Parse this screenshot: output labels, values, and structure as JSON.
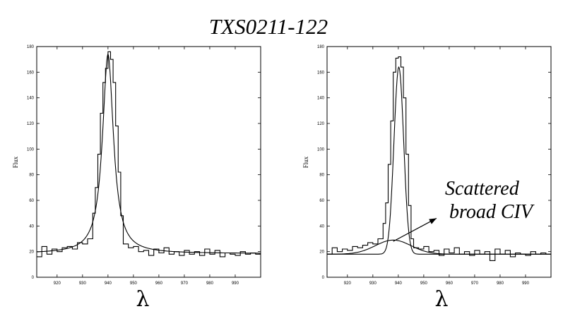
{
  "figure": {
    "title": "TXS0211-122"
  },
  "chart_data": [
    {
      "type": "line",
      "ylabel": "Flux",
      "xlabel": "λ",
      "xlim": [
        912,
        1000
      ],
      "ylim": [
        0,
        180
      ],
      "xticks": [
        920,
        930,
        940,
        950,
        960,
        970,
        980,
        990
      ],
      "yticks": [
        0,
        20,
        40,
        60,
        80,
        100,
        120,
        140,
        160,
        180
      ],
      "series": [
        {
          "style": "steps",
          "x": [
            912,
            914,
            916,
            918,
            920,
            922,
            924,
            926,
            928,
            930,
            932,
            934,
            935,
            936,
            937,
            938,
            939,
            940,
            941,
            942,
            943,
            944,
            945,
            946,
            948,
            950,
            952,
            954,
            956,
            958,
            960,
            962,
            964,
            966,
            968,
            970,
            972,
            974,
            976,
            978,
            980,
            982,
            984,
            986,
            988,
            990,
            992,
            994,
            996,
            998
          ],
          "y": [
            16,
            24,
            18,
            22,
            20,
            23,
            24,
            22,
            27,
            26,
            30,
            50,
            70,
            96,
            128,
            152,
            163,
            176,
            170,
            152,
            118,
            82,
            48,
            26,
            23,
            24,
            20,
            21,
            17,
            22,
            19,
            23,
            18,
            20,
            17,
            21,
            18,
            20,
            17,
            22,
            18,
            21,
            16,
            19,
            18,
            17,
            20,
            18,
            19,
            18
          ]
        },
        {
          "style": "smooth",
          "model": "lorentzian",
          "center": 940,
          "peak": 174,
          "hwhm": 2.6,
          "baseline": 18.5
        }
      ]
    },
    {
      "type": "line",
      "ylabel": "Flux",
      "xlabel": "λ",
      "xlim": [
        912,
        1000
      ],
      "ylim": [
        0,
        180
      ],
      "xticks": [
        920,
        930,
        940,
        950,
        960,
        970,
        980,
        990
      ],
      "yticks": [
        0,
        20,
        40,
        60,
        80,
        100,
        120,
        140,
        160,
        180
      ],
      "annotations": [
        {
          "line1": "Scattered",
          "line2": "broad CIV",
          "arrow_from": [
            938,
            28
          ],
          "arrow_to": [
            955,
            46
          ]
        }
      ],
      "series": [
        {
          "style": "steps",
          "x": [
            912,
            914,
            916,
            918,
            920,
            922,
            924,
            926,
            928,
            930,
            932,
            934,
            935,
            936,
            937,
            938,
            939,
            940,
            941,
            942,
            943,
            944,
            945,
            946,
            948,
            950,
            952,
            954,
            956,
            958,
            960,
            962,
            964,
            966,
            968,
            970,
            972,
            974,
            976,
            978,
            980,
            982,
            984,
            986,
            988,
            990,
            992,
            994,
            996,
            998
          ],
          "y": [
            18,
            23,
            20,
            22,
            21,
            24,
            23,
            25,
            27,
            26,
            30,
            42,
            58,
            88,
            122,
            160,
            171,
            172,
            164,
            140,
            96,
            56,
            30,
            23,
            22,
            24,
            20,
            21,
            17,
            22,
            19,
            23,
            18,
            20,
            17,
            21,
            18,
            20,
            13,
            22,
            18,
            21,
            16,
            19,
            18,
            17,
            20,
            18,
            19,
            18
          ]
        },
        {
          "style": "smooth",
          "model": "gaussian",
          "center": 940.2,
          "peak": 164,
          "sigma": 1.9,
          "baseline": 18
        },
        {
          "style": "smooth",
          "model": "broad",
          "center": 938,
          "peak": 29,
          "sigma": 7,
          "baseline": 18
        }
      ]
    }
  ]
}
